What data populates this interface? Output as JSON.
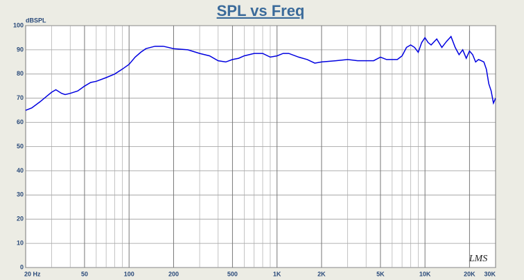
{
  "chart_data": {
    "type": "line",
    "title": "SPL vs Freq",
    "ylabel": "dBSPL",
    "annotation": "LMS",
    "xscale": "log",
    "grid": true,
    "xlim": [
      20,
      30000
    ],
    "ylim": [
      0,
      100
    ],
    "xticks": [
      {
        "value": 20,
        "label": "20 Hz"
      },
      50,
      100,
      200,
      500,
      {
        "value": 1000,
        "label": "1K"
      },
      {
        "value": 2000,
        "label": "2K"
      },
      {
        "value": 5000,
        "label": "5K"
      },
      {
        "value": 10000,
        "label": "10K"
      },
      {
        "value": 20000,
        "label": "20K"
      },
      {
        "value": 30000,
        "label": "30K"
      }
    ],
    "minor_xticks": [
      30,
      40,
      60,
      70,
      80,
      90,
      300,
      400,
      600,
      700,
      800,
      900,
      3000,
      4000,
      6000,
      7000,
      8000,
      9000
    ],
    "yticks": [
      0,
      10,
      20,
      30,
      40,
      50,
      60,
      70,
      80,
      90,
      100
    ],
    "series": [
      {
        "name": "SPL",
        "color": "#0000e0",
        "x": [
          20,
          22,
          25,
          28,
          30,
          32,
          35,
          37,
          40,
          45,
          50,
          55,
          60,
          70,
          80,
          90,
          100,
          110,
          120,
          130,
          150,
          170,
          200,
          250,
          300,
          350,
          400,
          450,
          500,
          550,
          600,
          700,
          800,
          900,
          1000,
          1100,
          1200,
          1400,
          1600,
          1800,
          2000,
          2500,
          3000,
          3500,
          4000,
          4500,
          5000,
          5500,
          6000,
          6500,
          7000,
          7500,
          8000,
          8500,
          9000,
          9500,
          10000,
          10500,
          11000,
          12000,
          13000,
          14000,
          15000,
          16000,
          17000,
          18000,
          19000,
          20000,
          21000,
          22000,
          23000,
          24000,
          25000,
          26000,
          27000,
          28000,
          29000,
          30000
        ],
        "values": [
          65,
          66,
          68.5,
          71,
          72.5,
          73.5,
          72,
          71.5,
          72,
          73,
          75,
          76.5,
          77,
          78.5,
          80,
          82,
          84,
          87,
          89,
          90.5,
          91.5,
          91.5,
          90.5,
          90,
          88.5,
          87.5,
          85.5,
          85,
          86,
          86.5,
          87.5,
          88.5,
          88.5,
          87,
          87.5,
          88.5,
          88.5,
          87,
          86,
          84.5,
          85,
          85.5,
          86,
          85.5,
          85.5,
          85.5,
          87,
          86,
          86,
          86,
          87.5,
          91,
          92,
          91,
          89,
          93,
          95,
          93,
          92,
          94.5,
          91,
          93.5,
          95.5,
          91,
          88,
          90,
          86.5,
          89.5,
          88,
          85,
          86,
          85.5,
          85,
          82,
          76,
          73,
          68,
          70
        ]
      }
    ]
  }
}
